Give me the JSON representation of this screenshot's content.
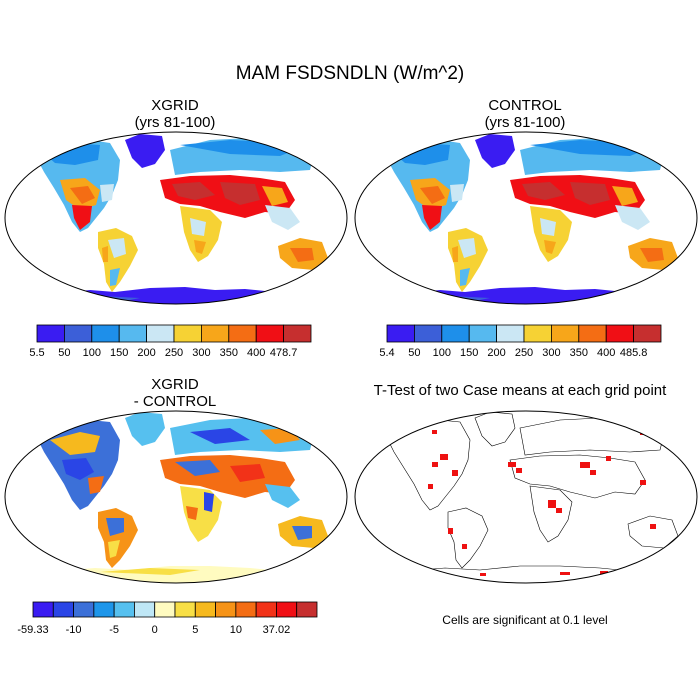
{
  "figure": {
    "title": "MAM FSDSNDLN (W/m^2)"
  },
  "panels": [
    {
      "id": "xgrid",
      "title_lines": [
        "XGRID",
        "(yrs 81-100)"
      ]
    },
    {
      "id": "control",
      "title_lines": [
        "CONTROL",
        "(yrs 81-100)"
      ]
    },
    {
      "id": "diff",
      "title_lines": [
        "XGRID",
        "- CONTROL"
      ]
    },
    {
      "id": "ttest",
      "title_lines": [
        "T-Test of two Case means at each grid point"
      ]
    }
  ],
  "colorbars": {
    "xgrid": {
      "labels": [
        "5.5",
        "50",
        "100",
        "150",
        "200",
        "250",
        "300",
        "350",
        "400",
        "478.7"
      ],
      "colors": [
        "#3a1cf2",
        "#3c5fd8",
        "#1e8fea",
        "#56b9ef",
        "#cbe7f4",
        "#f6d234",
        "#f7a61a",
        "#f46d14",
        "#f00f15",
        "#c62f2f"
      ]
    },
    "control": {
      "labels": [
        "5.4",
        "50",
        "100",
        "150",
        "200",
        "250",
        "300",
        "350",
        "400",
        "485.8"
      ],
      "colors": [
        "#3a1cf2",
        "#3c5fd8",
        "#1e8fea",
        "#56b9ef",
        "#cbe7f4",
        "#f6d234",
        "#f7a61a",
        "#f46d14",
        "#f00f15",
        "#c62f2f"
      ]
    },
    "diff": {
      "labels": [
        "-59.33",
        "-10",
        "-5",
        "0",
        "5",
        "10",
        "37.02"
      ],
      "colors": [
        "#3a1cf2",
        "#2a45e6",
        "#3c70d8",
        "#1e96ea",
        "#56c0ef",
        "#bfe7f6",
        "#fffbc0",
        "#f8df46",
        "#f6b91e",
        "#f69317",
        "#f46d14",
        "#f23218",
        "#f00f15",
        "#c62f2f"
      ]
    }
  },
  "footnote": "Cells are significant at 0.1 level"
}
